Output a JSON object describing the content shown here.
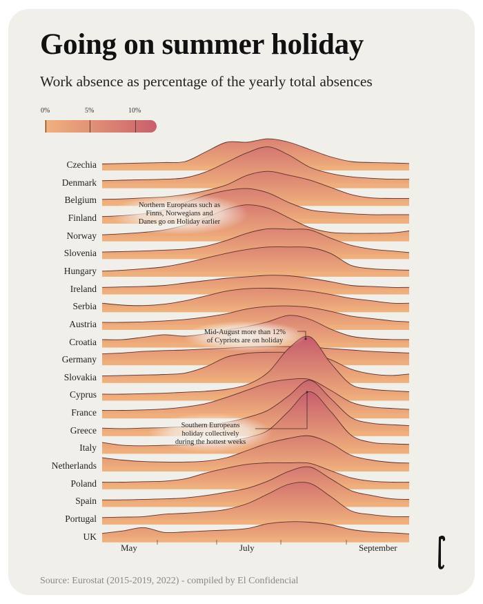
{
  "header": {
    "title": "Going on summer holiday",
    "subtitle": "Work absence as percentage of the yearly total absences"
  },
  "legend": {
    "ticks": [
      "0%",
      "5%",
      "10%"
    ],
    "colors": {
      "low": "#f1b27c",
      "high": "#c85e6c"
    }
  },
  "annotations": {
    "northern": [
      "Northern Europeans such as",
      "Finns, Norwegians and",
      "Danes go on Holiday earlier"
    ],
    "cyprus": [
      "Mid-August more than 12%",
      "of Cypriots are on holiday"
    ],
    "southern": [
      "Southern Europeans",
      "holiday collectively",
      "during the hottest weeks"
    ]
  },
  "footer": {
    "source": "Source: Eurostat (2015-2019, 2022) - compiled by El Confidencial",
    "logo": "El Confidencial"
  },
  "chart_data": {
    "type": "ridgeline",
    "unit": "%",
    "x_tick_labels": [
      "May",
      "July",
      "September"
    ],
    "x": [
      "May 5",
      "May 15",
      "May 25",
      "Jun 4",
      "Jun 14",
      "Jun 24",
      "Jul 4",
      "Jul 14",
      "Jul 24",
      "Aug 3",
      "Aug 13",
      "Aug 23",
      "Sep 2",
      "Sep 12",
      "Sep 22",
      "Sep 30"
    ],
    "series": [
      {
        "name": "Czechia",
        "values": [
          0.5,
          0.6,
          0.7,
          0.8,
          1,
          3,
          5,
          5,
          5.7,
          5,
          3.5,
          2,
          1,
          0.8,
          0.7,
          0.6
        ]
      },
      {
        "name": "Denmark",
        "values": [
          0.7,
          0.8,
          0.9,
          1,
          1.3,
          2.5,
          4.5,
          6.5,
          7.7,
          6,
          3.5,
          2.2,
          1.5,
          1.2,
          1,
          1
        ]
      },
      {
        "name": "Belgium",
        "values": [
          0.5,
          0.6,
          0.8,
          1,
          1.5,
          2.3,
          3.5,
          5.5,
          6.3,
          5.5,
          4.5,
          3,
          1.5,
          0.8,
          0.7,
          0.7
        ]
      },
      {
        "name": "Finland",
        "values": [
          0.6,
          0.8,
          1.2,
          2,
          3.5,
          5,
          6,
          6.4,
          5.5,
          3.5,
          2,
          1.5,
          1.2,
          1,
          1,
          1
        ]
      },
      {
        "name": "Norway",
        "values": [
          0.5,
          0.7,
          1,
          1.5,
          2.5,
          4,
          5.8,
          6.7,
          6,
          4,
          2,
          1,
          0.8,
          0.8,
          0.9,
          1.3
        ]
      },
      {
        "name": "Slovenia",
        "values": [
          0.6,
          0.7,
          0.8,
          1,
          1.2,
          1.8,
          3,
          4.5,
          5.4,
          5.3,
          5.2,
          3.5,
          2,
          1.2,
          0.8,
          0.5
        ]
      },
      {
        "name": "Hungary",
        "values": [
          0.3,
          0.5,
          0.8,
          1.2,
          2,
          3,
          4,
          4.8,
          5.3,
          5.3,
          5.2,
          4,
          1.5,
          0.8,
          0.6,
          0.5
        ]
      },
      {
        "name": "Ireland",
        "values": [
          0.6,
          0.7,
          0.8,
          1,
          1.5,
          2,
          2.5,
          2.8,
          3.1,
          3,
          2.5,
          1.8,
          1,
          0.8,
          0.6,
          0.6
        ]
      },
      {
        "name": "Serbia",
        "values": [
          1,
          0.6,
          0.5,
          0.8,
          1.5,
          2.5,
          3.5,
          4,
          4.1,
          3.9,
          3.5,
          2.8,
          2,
          1.5,
          1,
          1
        ]
      },
      {
        "name": "Austria",
        "values": [
          0.7,
          0.7,
          0.8,
          1,
          1.3,
          1.8,
          2.5,
          3.5,
          4,
          4.1,
          3.8,
          3,
          2,
          1.5,
          1,
          0.8
        ]
      },
      {
        "name": "Croatia",
        "values": [
          0.8,
          0.8,
          1.3,
          1.8,
          1.5,
          2,
          2.8,
          3.5,
          4.5,
          5.8,
          5,
          3,
          1.5,
          1,
          0.8,
          0.8
        ]
      },
      {
        "name": "Germany",
        "values": [
          1.5,
          1.7,
          2,
          2.2,
          2.3,
          2.5,
          2.7,
          2.9,
          3,
          3,
          2.9,
          2.6,
          2.3,
          2,
          1.8,
          1.7
        ]
      },
      {
        "name": "Slovakia",
        "values": [
          0.6,
          0.7,
          0.8,
          0.9,
          1.2,
          2.5,
          4.5,
          5.3,
          5.5,
          5.5,
          5.3,
          4,
          2,
          1,
          0.7,
          1
        ]
      },
      {
        "name": "Cyprus",
        "values": [
          0.5,
          0.5,
          0.6,
          0.7,
          0.9,
          1.1,
          1.5,
          2.5,
          5,
          10,
          12.4,
          7,
          2.5,
          1.5,
          1.2,
          1
        ]
      },
      {
        "name": "France",
        "values": [
          0.8,
          0.8,
          0.9,
          1.1,
          1.5,
          2.2,
          3.5,
          5,
          6.5,
          7.2,
          7.2,
          5,
          2.5,
          1.5,
          1.2,
          1
        ]
      },
      {
        "name": "Greece",
        "values": [
          0.8,
          0.7,
          0.8,
          0.9,
          1.1,
          1.4,
          2,
          3,
          4.5,
          7.5,
          10.7,
          7,
          3,
          1.8,
          1.5,
          1.3
        ]
      },
      {
        "name": "Italy",
        "values": [
          1.5,
          0.9,
          0.8,
          0.9,
          1,
          1.3,
          1.8,
          2.5,
          4,
          8,
          12,
          8,
          3,
          1.5,
          1.2,
          1.1
        ]
      },
      {
        "name": "Netherlands",
        "values": [
          2,
          1.5,
          1.2,
          1.1,
          1.1,
          1.3,
          2,
          3.5,
          5,
          6,
          6.5,
          5,
          2.5,
          1.5,
          1,
          0.9
        ]
      },
      {
        "name": "Poland",
        "values": [
          0.6,
          0.6,
          0.7,
          0.8,
          1.3,
          2.5,
          3.5,
          4.3,
          4.6,
          4.6,
          4.5,
          3,
          1.5,
          0.8,
          0.6,
          0.6
        ]
      },
      {
        "name": "Spain",
        "values": [
          0.6,
          0.6,
          0.7,
          0.8,
          1,
          1.5,
          2.2,
          3,
          4.5,
          6.5,
          7.4,
          5,
          2.5,
          1.5,
          0.8,
          0.7
        ]
      },
      {
        "name": "Portugal",
        "values": [
          0.6,
          0.7,
          0.8,
          1.3,
          1.5,
          1.8,
          2.3,
          3.5,
          5.5,
          7.5,
          7.7,
          5,
          2,
          1.2,
          0.8,
          0.8
        ]
      },
      {
        "name": "UK",
        "values": [
          1,
          1.5,
          2.2,
          1.2,
          1.3,
          1.5,
          1.7,
          2,
          3,
          3.4,
          3.3,
          2.8,
          1.8,
          1.3,
          1.1,
          0.9
        ]
      }
    ]
  }
}
